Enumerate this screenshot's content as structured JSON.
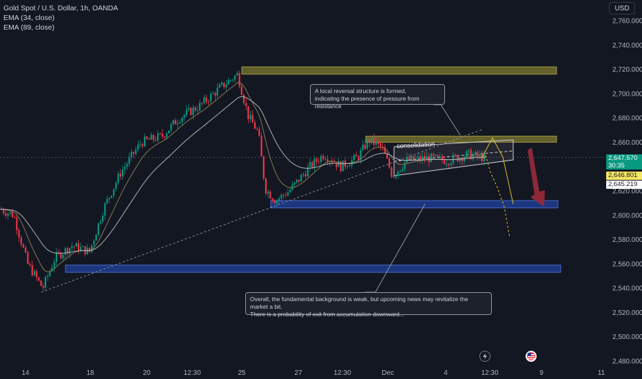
{
  "header": {
    "symbol": "Gold Spot / U.S. Dollar, 1h, OANDA",
    "indicator_1": "EMA (34, close)",
    "indicator_2": "EMA (89, close)"
  },
  "currency_button": "USD",
  "price_tags": {
    "last_price": "2,647.570",
    "countdown": "30:35",
    "level_1": "2,646.801",
    "level_2": "2,645.219"
  },
  "notes": {
    "resistance_note": "A local reversal structure is formed,\nindicating the presence of pressure from resistance",
    "fundamental_note": "Overall, the fundamental background is weak, but upcoming news may revitalize the market a bit.\nThere is a probability of exit from accumulation downward..."
  },
  "colors": {
    "background": "#131722",
    "up": "#089981",
    "down": "#f23645",
    "ema34": "#8a7a55",
    "ema89": "#b2b5be",
    "resistance_zone": "#6b6a2e",
    "support_zone": "#1e3a8a",
    "forecast": "#e6c229",
    "arrow": "#9c2a3b"
  },
  "icons": [
    "lightning-icon",
    "us-flag-icon"
  ],
  "chart_data": {
    "type": "candlestick",
    "symbol": "XAUUSD",
    "timeframe": "1h",
    "xlabel": "",
    "ylabel": "",
    "x_tick_labels": [
      "14",
      "18",
      "20",
      "12:30",
      "25",
      "27",
      "12:30",
      "Dec",
      "4",
      "12:30",
      "9",
      "11"
    ],
    "y_tick_labels": [
      "2,760.000",
      "2,740.000",
      "2,720.000",
      "2,700.000",
      "2,680.000",
      "2,660.000",
      "2,640.000",
      "2,620.000",
      "2,600.000",
      "2,580.000",
      "2,560.000",
      "2,540.000",
      "2,520.000",
      "2,500.000",
      "2,480.000"
    ],
    "ylim": [
      2474,
      2768
    ],
    "grid": false,
    "zones": [
      {
        "name": "resistance-upper",
        "price_low": 2716,
        "price_high": 2722
      },
      {
        "name": "resistance-lower",
        "price_low": 2660,
        "price_high": 2665
      },
      {
        "name": "support-upper",
        "price_low": 2606,
        "price_high": 2612
      },
      {
        "name": "support-lower",
        "price_low": 2553,
        "price_high": 2559
      }
    ],
    "annotations": [
      "consolidation"
    ],
    "last_price": 2647.57
  }
}
